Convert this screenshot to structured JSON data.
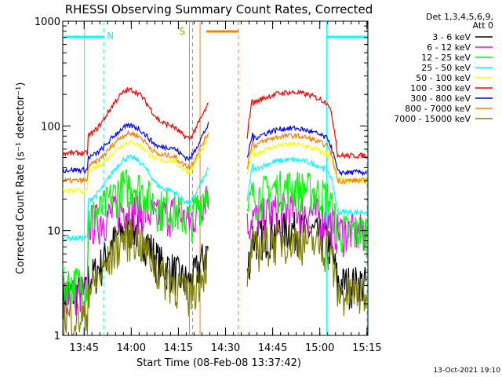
{
  "chart_data": {
    "type": "line",
    "title": "RHESSI Observing Summary Count Rates, Corrected",
    "xlabel": "Start Time (08-Feb-08 13:37:42)",
    "ylabel": "Corrected Count Rate (s⁻¹ detector⁻¹)",
    "yscale": "log",
    "ylim": [
      1,
      1000
    ],
    "y_ticks": [
      {
        "value": 1,
        "label": "1"
      },
      {
        "value": 10,
        "label": "10"
      },
      {
        "value": 100,
        "label": "100"
      },
      {
        "value": 1000,
        "label": "1000"
      }
    ],
    "x_ticks": [
      "13:45",
      "14:00",
      "14:15",
      "14:30",
      "14:45",
      "15:00",
      "15:15"
    ],
    "grid": false,
    "legend_position": "right",
    "legend_header": [
      "Det 1,3,4,5,6,9,",
      "Att 0"
    ],
    "series": [
      {
        "name": "3 - 6 keV",
        "color": "#000000",
        "base": 2.6,
        "peak": 11,
        "pre": 3.2,
        "post": 3.2
      },
      {
        "name": "6 - 12 keV",
        "color": "#ff00ff",
        "base": 2.6,
        "peak": 17,
        "pre": 12,
        "post": 10
      },
      {
        "name": "12 - 25 keV",
        "color": "#00ff00",
        "base": 3.2,
        "peak": 28,
        "pre": 13,
        "post": 10
      },
      {
        "name": "25 - 50 keV",
        "color": "#00ffff",
        "base": 8.5,
        "peak": 50,
        "pre": 18,
        "post": 15
      },
      {
        "name": "50 - 100 keV",
        "color": "#ffff00",
        "base": 24,
        "peak": 70,
        "pre": 36,
        "post": 30
      },
      {
        "name": "100 - 300 keV",
        "color": "#ff0000",
        "base": 55,
        "peak": 220,
        "pre": 75,
        "post": 52
      },
      {
        "name": "300 - 800 keV",
        "color": "#0000ff",
        "base": 38,
        "peak": 100,
        "pre": 48,
        "post": 36
      },
      {
        "name": "800 - 7000 keV",
        "color": "#ff8000",
        "base": 30,
        "peak": 85,
        "pre": 40,
        "post": 30
      },
      {
        "name": "7000 - 15000 keV",
        "color": "#808000",
        "base": 1.5,
        "peak": 9,
        "pre": 2.5,
        "post": 2.5
      }
    ],
    "annotations": [
      {
        "label": "N",
        "color": "#00ffff"
      },
      {
        "label": "S",
        "color": "#ff8000"
      }
    ],
    "footer_date": "13-Oct-2021 19:10"
  }
}
